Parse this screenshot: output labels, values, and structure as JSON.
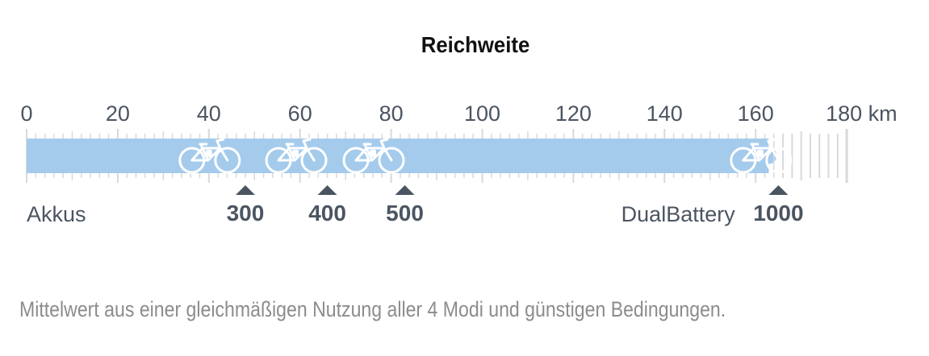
{
  "chart_data": {
    "type": "bar",
    "title": "Reichweite",
    "xlim": [
      0,
      180
    ],
    "unit": "km",
    "ticks": [
      0,
      20,
      40,
      60,
      80,
      100,
      120,
      140,
      160,
      180
    ],
    "bar": {
      "start": 0,
      "end": 165
    },
    "markers": [
      {
        "label": "300",
        "value": 48
      },
      {
        "label": "400",
        "value": 66
      },
      {
        "label": "500",
        "value": 83
      },
      {
        "label": "1000",
        "value": 165
      }
    ],
    "group_labels": [
      {
        "label": "Akkus",
        "value": 0
      },
      {
        "label": "DualBattery",
        "value": 130.5
      }
    ],
    "bike_icons": [
      40,
      59,
      76,
      161
    ]
  },
  "footnote": "Mittelwert aus einer gleichmäßigen Nutzung aller 4 Modi und günstigen Bedingungen.",
  "colors": {
    "bar": "#a5cbec",
    "text": "#4b5561",
    "tick": "#d9d9d9",
    "marker": "#4b5561",
    "bike": "#ffffff"
  }
}
